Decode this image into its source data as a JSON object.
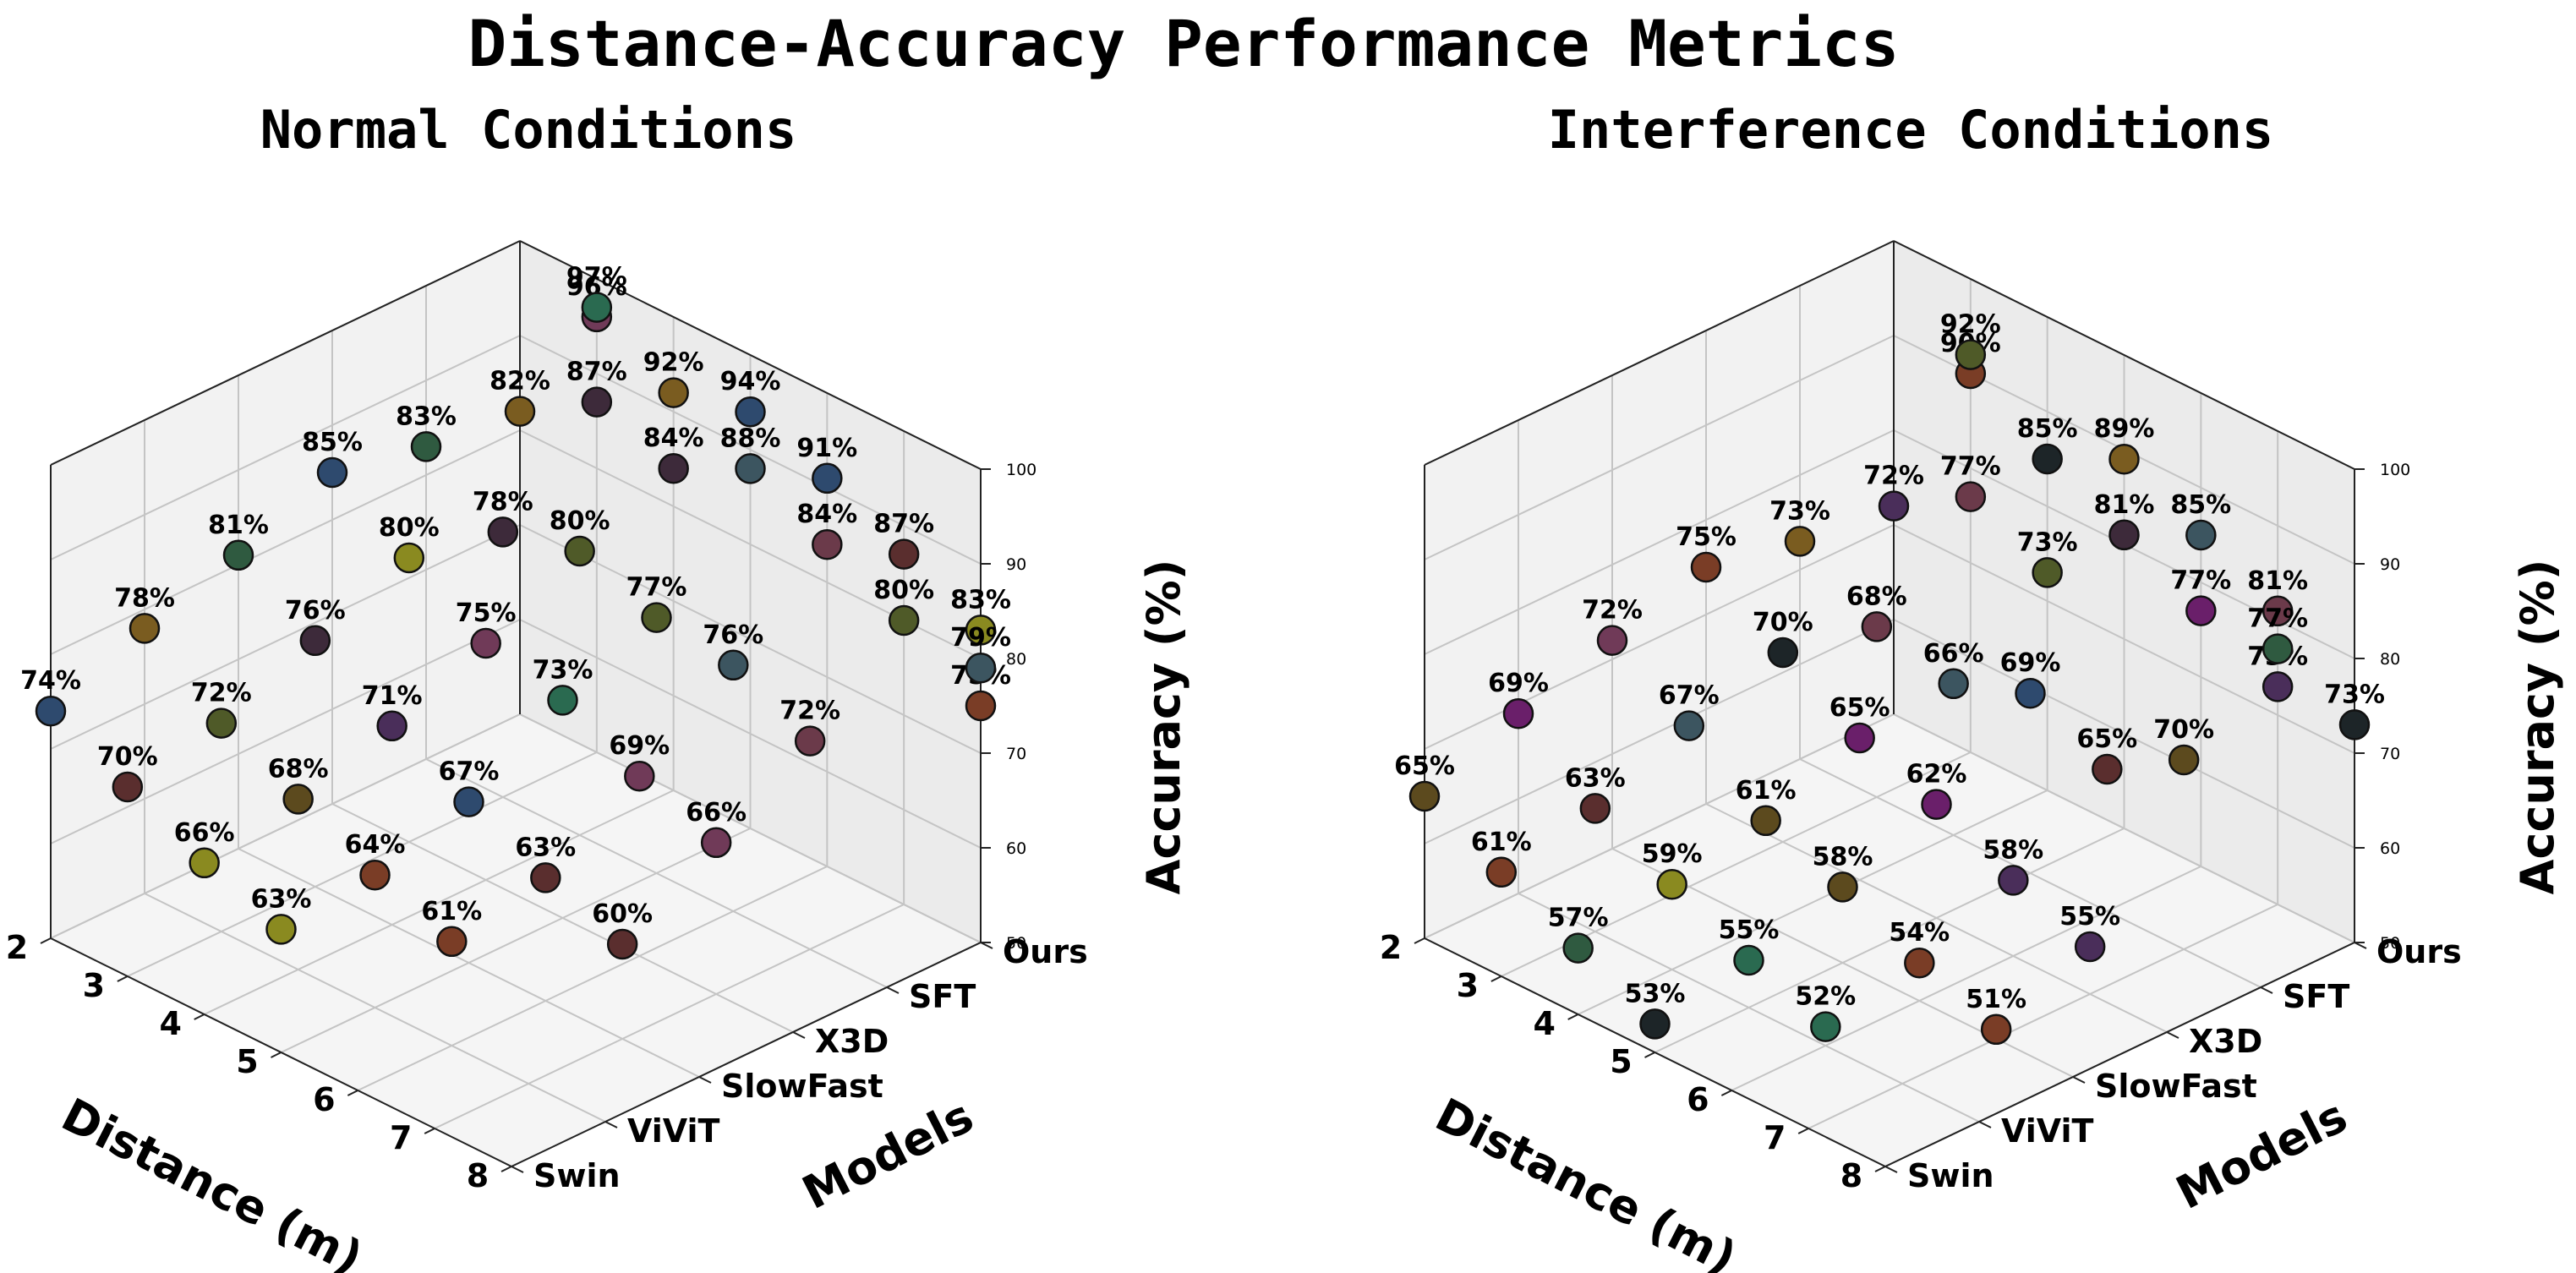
{
  "title": "Distance-Accuracy Performance Metrics",
  "chart_data": [
    {
      "type": "scatter3d",
      "title": "Normal Conditions",
      "xlabel": "Distance (m)",
      "ylabel": "Models",
      "zlabel": "Accuracy (%)",
      "x": [
        2,
        3,
        4,
        5,
        6,
        7,
        8
      ],
      "xlim": [
        2,
        8
      ],
      "models": [
        "Swin",
        "ViViT",
        "SlowFast",
        "X3D",
        "SFT",
        "Ours"
      ],
      "zlim": [
        50,
        100
      ],
      "zticks": [
        50,
        60,
        70,
        80,
        90,
        100
      ],
      "series": [
        {
          "model": "Swin",
          "values": [
            74,
            70,
            66,
            63
          ]
        },
        {
          "model": "ViViT",
          "values": [
            78,
            72,
            68,
            64,
            61
          ]
        },
        {
          "model": "SlowFast",
          "values": [
            81,
            76,
            71,
            67,
            63,
            60
          ]
        },
        {
          "model": "X3D",
          "values": [
            85,
            80,
            75,
            73,
            69,
            66
          ]
        },
        {
          "model": "SFT",
          "values": [
            83,
            78,
            80,
            77,
            76,
            72
          ]
        },
        {
          "model": "Ours",
          "values": [
            82,
            87,
            84,
            88,
            84,
            80,
            75
          ]
        }
      ],
      "extra_points": [
        {
          "model": "Ours",
          "x": 3,
          "value": 96
        },
        {
          "model": "Ours",
          "x": 3,
          "value": 97
        },
        {
          "model": "Ours",
          "x": 4,
          "value": 92
        },
        {
          "model": "Ours",
          "x": 5,
          "value": 94
        },
        {
          "model": "Ours",
          "x": 6,
          "value": 91
        },
        {
          "model": "Ours",
          "x": 7,
          "value": 87
        },
        {
          "model": "Ours",
          "x": 8,
          "value": 83
        },
        {
          "model": "Ours",
          "x": 8,
          "value": 79
        }
      ]
    },
    {
      "type": "scatter3d",
      "title": "Interference Conditions",
      "xlabel": "Distance (m)",
      "ylabel": "Models",
      "zlabel": "Accuracy (%)",
      "x": [
        2,
        3,
        4,
        5,
        6,
        7,
        8
      ],
      "xlim": [
        2,
        8
      ],
      "models": [
        "Swin",
        "ViViT",
        "SlowFast",
        "X3D",
        "SFT",
        "Ours"
      ],
      "zlim": [
        50,
        100
      ],
      "zticks": [
        50,
        60,
        70,
        80,
        90,
        100
      ],
      "series": [
        {
          "model": "Swin",
          "values": [
            65,
            61,
            57,
            53
          ]
        },
        {
          "model": "ViViT",
          "values": [
            69,
            63,
            59,
            55,
            52
          ]
        },
        {
          "model": "SlowFast",
          "values": [
            72,
            67,
            61,
            58,
            54,
            51
          ]
        },
        {
          "model": "X3D",
          "values": [
            75,
            70,
            65,
            62,
            58,
            55
          ]
        },
        {
          "model": "SFT",
          "values": [
            73,
            68,
            66,
            69,
            65,
            70
          ]
        },
        {
          "model": "Ours",
          "values": [
            72,
            77,
            73,
            81,
            77,
            73
          ]
        }
      ],
      "extra_points": [
        {
          "model": "Ours",
          "x": 3,
          "value": 90
        },
        {
          "model": "Ours",
          "x": 3,
          "value": 92
        },
        {
          "model": "Ours",
          "x": 4,
          "value": 85
        },
        {
          "model": "Ours",
          "x": 5,
          "value": 89
        },
        {
          "model": "Ours",
          "x": 6,
          "value": 85
        },
        {
          "model": "Ours",
          "x": 7,
          "value": 81
        },
        {
          "model": "Ours",
          "x": 7,
          "value": 77
        },
        {
          "model": "Ours",
          "x": 8,
          "value": 73
        }
      ]
    }
  ]
}
